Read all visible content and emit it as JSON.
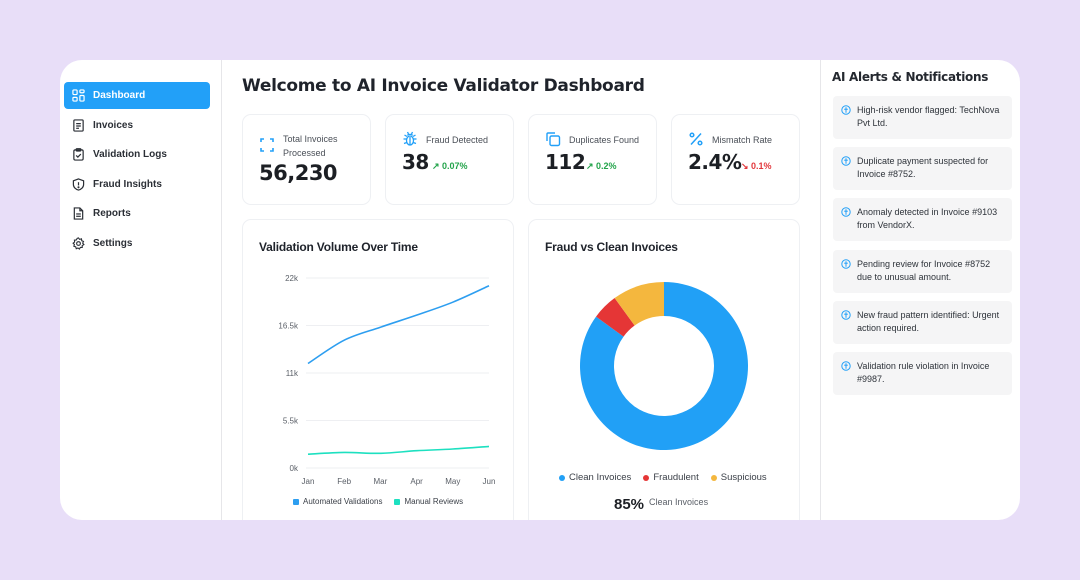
{
  "sidebar": {
    "items": [
      {
        "label": "Dashboard",
        "icon": "dashboard-grid-icon",
        "active": true
      },
      {
        "label": "Invoices",
        "icon": "document-icon"
      },
      {
        "label": "Validation Logs",
        "icon": "clipboard-check-icon"
      },
      {
        "label": "Fraud Insights",
        "icon": "shield-alert-icon"
      },
      {
        "label": "Reports",
        "icon": "report-file-icon"
      },
      {
        "label": "Settings",
        "icon": "gear-icon"
      }
    ]
  },
  "header": {
    "title": "Welcome to AI Invoice Validator Dashboard"
  },
  "stats": [
    {
      "label": "Total Invoices Processed",
      "value": "56,230",
      "icon": "scan-frame-icon"
    },
    {
      "label": "Fraud Detected",
      "value": "38",
      "delta": "↗ 0.07%",
      "trend": "up",
      "icon": "bug-icon"
    },
    {
      "label": "Duplicates Found",
      "value": "112",
      "delta": "↗ 0.2%",
      "trend": "up",
      "icon": "copy-icon"
    },
    {
      "label": "Mismatch Rate",
      "value": "2.4%",
      "delta": "↘ 0.1%",
      "trend": "down",
      "icon": "percent-icon"
    }
  ],
  "colors": {
    "accent": "#22a0f8",
    "automated": "#2d9ef0",
    "manual": "#1de0c0",
    "clean": "#21a0f6",
    "fraudulent": "#e53636",
    "suspicious": "#f4b73e",
    "up": "#22a34a",
    "down": "#e2363b",
    "background": "#e8def8"
  },
  "chart_data": [
    {
      "type": "line",
      "title": "Validation Volume Over Time",
      "x": [
        "Jan",
        "Feb",
        "Mar",
        "Apr",
        "May",
        "Jun"
      ],
      "series": [
        {
          "name": "Automated Validations",
          "values": [
            12100,
            14800,
            16300,
            17700,
            19200,
            21100
          ]
        },
        {
          "name": "Manual Reviews",
          "values": [
            1600,
            1800,
            1700,
            2000,
            2200,
            2500
          ]
        }
      ],
      "yticks": [
        "0k",
        "5.5k",
        "11k",
        "16.5k",
        "22k"
      ],
      "ylim": [
        0,
        22000
      ],
      "xlabel": "",
      "ylabel": "",
      "grid": true,
      "legend": "bottom"
    },
    {
      "type": "pie",
      "title": "Fraud vs Clean Invoices",
      "categories": [
        "Clean Invoices",
        "Fraudulent",
        "Suspicious"
      ],
      "values": [
        85,
        5,
        10
      ],
      "donut": true,
      "legend": "bottom",
      "summary": {
        "value": "85%",
        "label": "Clean Invoices"
      }
    }
  ],
  "alerts": {
    "title": "AI Alerts & Notifications",
    "items": [
      {
        "text": "High-risk vendor flagged: TechNova Pvt Ltd.",
        "icon": "info-icon"
      },
      {
        "text": "Duplicate payment suspected for Invoice #8752.",
        "icon": "info-icon"
      },
      {
        "text": "Anomaly detected in Invoice #9103 from VendorX.",
        "icon": "info-icon"
      },
      {
        "text": "Pending review for Invoice #8752 due to unusual amount.",
        "icon": "info-icon"
      },
      {
        "text": "New fraud pattern identified: Urgent action required.",
        "icon": "info-icon"
      },
      {
        "text": "Validation rule violation in Invoice #9987.",
        "icon": "info-icon"
      }
    ]
  }
}
